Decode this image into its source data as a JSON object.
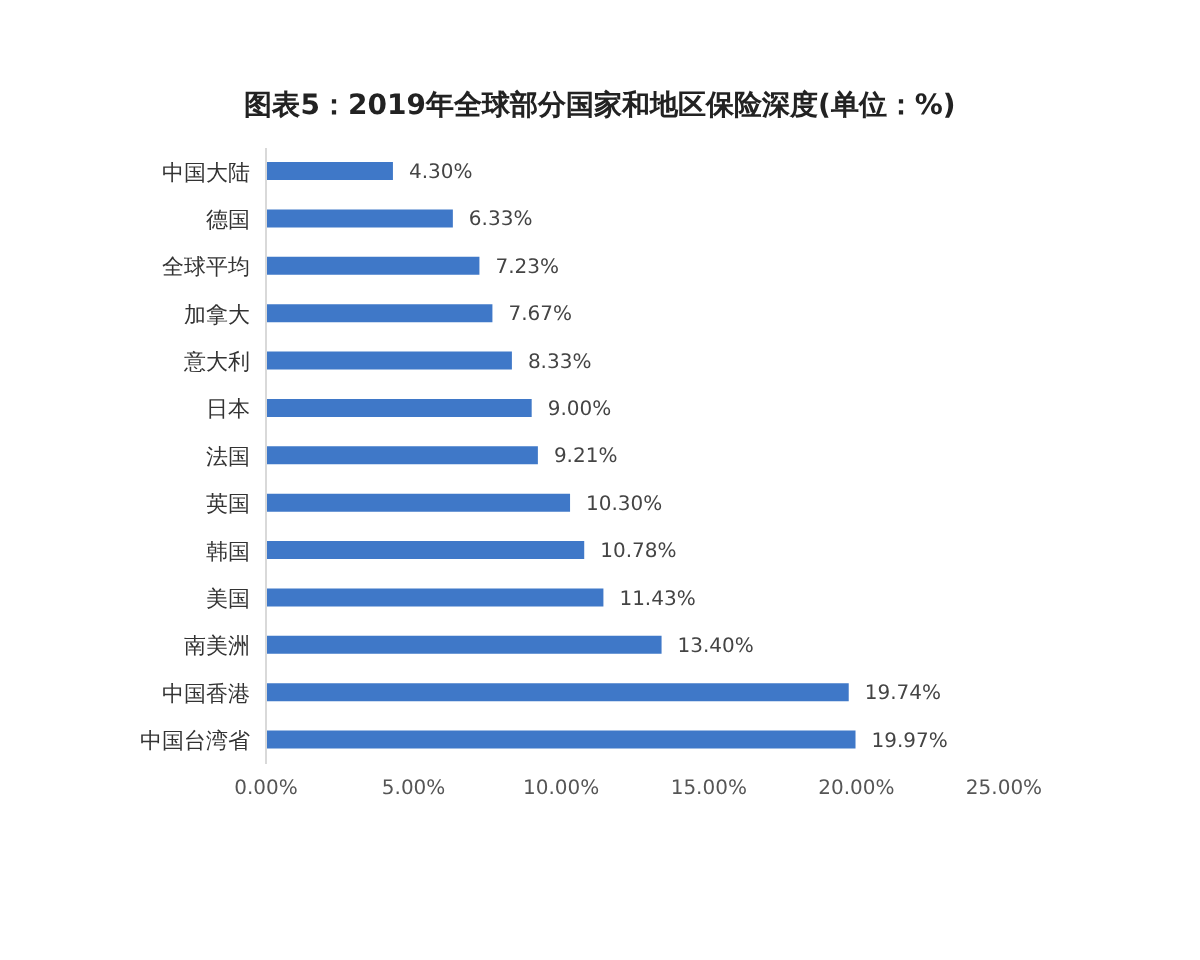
{
  "chart_data": {
    "type": "bar",
    "orientation": "horizontal",
    "title": "图表5：2019年全球部分国家和地区保险深度(单位：%)",
    "categories": [
      "中国大陆",
      "德国",
      "全球平均",
      "加拿大",
      "意大利",
      "日本",
      "法国",
      "英国",
      "韩国",
      "美国",
      "南美洲",
      "中国香港",
      "中国台湾省"
    ],
    "values": [
      4.3,
      6.33,
      7.23,
      7.67,
      8.33,
      9.0,
      9.21,
      10.3,
      10.78,
      11.43,
      13.4,
      19.74,
      19.97
    ],
    "value_labels": [
      "4.30%",
      "6.33%",
      "7.23%",
      "7.67%",
      "8.33%",
      "9.00%",
      "9.21%",
      "10.30%",
      "10.78%",
      "11.43%",
      "13.40%",
      "19.74%",
      "19.97%"
    ],
    "color": "#3f78c8",
    "xlim": [
      0,
      25
    ],
    "xticks": [
      {
        "value": 0,
        "label": "0.00%"
      },
      {
        "value": 5,
        "label": "5.00%"
      },
      {
        "value": 10,
        "label": "10.00%"
      },
      {
        "value": 15,
        "label": "15.00%"
      },
      {
        "value": 20,
        "label": "20.00%"
      },
      {
        "value": 25,
        "label": "25.00%"
      }
    ]
  }
}
